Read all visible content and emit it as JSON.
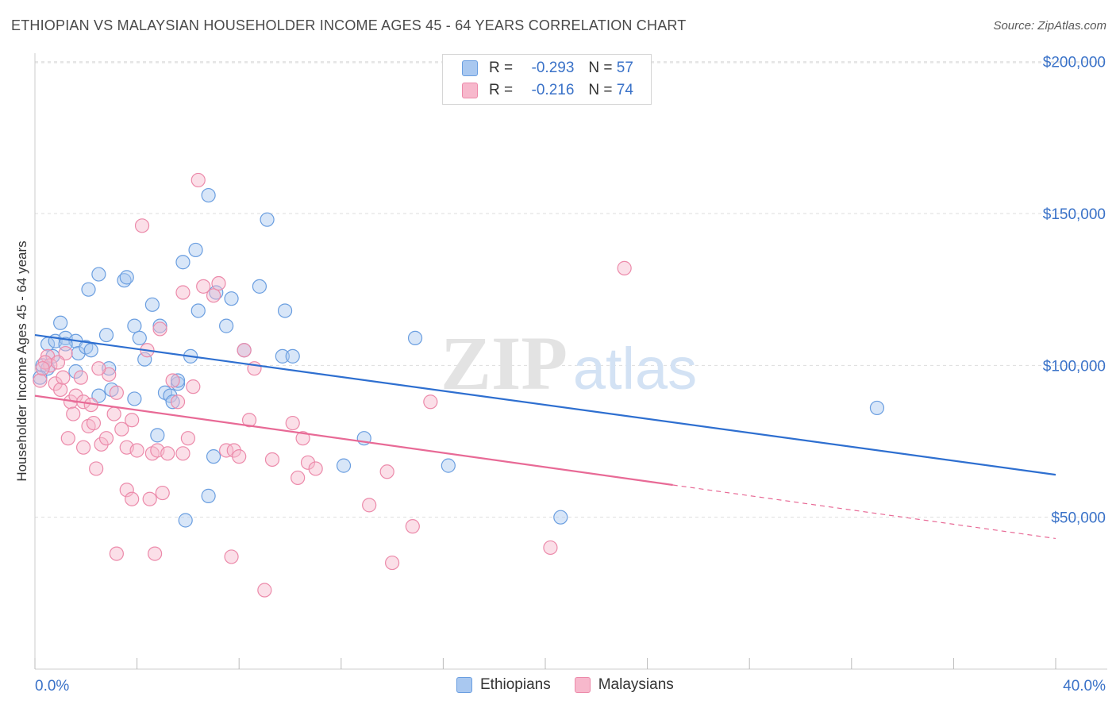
{
  "header": {
    "title": "ETHIOPIAN VS MALAYSIAN HOUSEHOLDER INCOME AGES 45 - 64 YEARS CORRELATION CHART",
    "source": "Source: ZipAtlas.com"
  },
  "legend": {
    "rows": [
      {
        "r_label": "R =",
        "r_value": "-0.293",
        "n_label": "N =",
        "n_value": "57"
      },
      {
        "r_label": "R =",
        "r_value": "-0.216",
        "n_label": "N =",
        "n_value": "74"
      }
    ]
  },
  "watermark": {
    "zip": "ZIP",
    "atlas": "atlas"
  },
  "colors": {
    "ethiopians_fill": "#a9c8f0",
    "ethiopians_stroke": "#6a9ee0",
    "ethiopians_line": "#2e6fd0",
    "malaysians_fill": "#f7b8cc",
    "malaysians_stroke": "#ec8aaa",
    "malaysians_line": "#e86a96",
    "tick_label": "#3a72c8",
    "grid": "#dddddd"
  },
  "chart_data": {
    "type": "scatter",
    "title": "ETHIOPIAN VS MALAYSIAN HOUSEHOLDER INCOME AGES 45 - 64 YEARS CORRELATION CHART",
    "xlabel": "",
    "ylabel": "Householder Income Ages 45 - 64 years",
    "xlim": [
      0,
      40
    ],
    "ylim": [
      0,
      210000
    ],
    "x_tick_labels": [
      {
        "value": 0,
        "label": "0.0%"
      },
      {
        "value": 40,
        "label": "40.0%"
      }
    ],
    "y_ticks": [
      {
        "value": 50000,
        "label": "$50,000"
      },
      {
        "value": 100000,
        "label": "$100,000"
      },
      {
        "value": 150000,
        "label": "$150,000"
      },
      {
        "value": 200000,
        "label": "$200,000"
      }
    ],
    "x_minor_ticks": [
      0,
      4,
      8,
      12,
      16,
      20,
      24,
      28,
      32,
      36,
      40
    ],
    "grid": true,
    "legend_position": "top-center",
    "series": [
      {
        "name": "Ethiopians",
        "trend": {
          "x": [
            0,
            40
          ],
          "y": [
            110000,
            64000
          ],
          "dashed_from": null
        },
        "points": [
          [
            0.3,
            100000
          ],
          [
            0.5,
            107000
          ],
          [
            0.8,
            108000
          ],
          [
            1.0,
            114000
          ],
          [
            1.2,
            109000
          ],
          [
            1.6,
            108000
          ],
          [
            1.7,
            104000
          ],
          [
            2.0,
            106000
          ],
          [
            2.1,
            125000
          ],
          [
            2.5,
            130000
          ],
          [
            2.8,
            110000
          ],
          [
            2.9,
            99000
          ],
          [
            3.5,
            128000
          ],
          [
            3.6,
            129000
          ],
          [
            3.0,
            92000
          ],
          [
            3.9,
            113000
          ],
          [
            4.1,
            109000
          ],
          [
            4.6,
            120000
          ],
          [
            4.9,
            113000
          ],
          [
            5.1,
            91000
          ],
          [
            5.3,
            90000
          ],
          [
            5.4,
            88000
          ],
          [
            5.6,
            94000
          ],
          [
            5.8,
            134000
          ],
          [
            6.1,
            103000
          ],
          [
            6.3,
            138000
          ],
          [
            6.4,
            118000
          ],
          [
            6.8,
            156000
          ],
          [
            7.1,
            124000
          ],
          [
            7.5,
            113000
          ],
          [
            7.7,
            122000
          ],
          [
            8.8,
            126000
          ],
          [
            8.2,
            105000
          ],
          [
            9.1,
            148000
          ],
          [
            9.7,
            103000
          ],
          [
            9.8,
            118000
          ],
          [
            10.1,
            103000
          ],
          [
            12.1,
            67000
          ],
          [
            12.9,
            76000
          ],
          [
            14.9,
            109000
          ],
          [
            16.2,
            67000
          ],
          [
            20.6,
            50000
          ],
          [
            33.0,
            86000
          ],
          [
            6.8,
            57000
          ],
          [
            7.0,
            70000
          ],
          [
            5.9,
            49000
          ],
          [
            4.8,
            77000
          ],
          [
            3.9,
            89000
          ],
          [
            2.5,
            90000
          ],
          [
            2.2,
            105000
          ],
          [
            1.6,
            98000
          ],
          [
            1.2,
            107000
          ],
          [
            0.7,
            103000
          ],
          [
            0.5,
            99000
          ],
          [
            4.3,
            102000
          ],
          [
            5.6,
            95000
          ],
          [
            0.2,
            96000
          ]
        ]
      },
      {
        "name": "Malaysians",
        "trend": {
          "x": [
            0,
            40
          ],
          "y": [
            90000,
            43000
          ],
          "dashed_from": 25.0
        },
        "points": [
          [
            0.2,
            95000
          ],
          [
            0.5,
            103000
          ],
          [
            0.6,
            100000
          ],
          [
            0.8,
            94000
          ],
          [
            1.0,
            92000
          ],
          [
            1.2,
            104000
          ],
          [
            1.4,
            88000
          ],
          [
            1.6,
            90000
          ],
          [
            1.8,
            96000
          ],
          [
            1.9,
            88000
          ],
          [
            2.1,
            80000
          ],
          [
            2.3,
            81000
          ],
          [
            2.4,
            66000
          ],
          [
            2.6,
            74000
          ],
          [
            2.9,
            97000
          ],
          [
            3.1,
            84000
          ],
          [
            3.2,
            91000
          ],
          [
            3.4,
            79000
          ],
          [
            3.6,
            73000
          ],
          [
            3.8,
            82000
          ],
          [
            4.0,
            72000
          ],
          [
            4.2,
            146000
          ],
          [
            4.4,
            105000
          ],
          [
            4.6,
            71000
          ],
          [
            4.8,
            72000
          ],
          [
            5.0,
            58000
          ],
          [
            5.2,
            71000
          ],
          [
            5.4,
            95000
          ],
          [
            5.6,
            88000
          ],
          [
            5.8,
            71000
          ],
          [
            6.0,
            76000
          ],
          [
            6.2,
            93000
          ],
          [
            6.4,
            161000
          ],
          [
            6.6,
            126000
          ],
          [
            7.0,
            123000
          ],
          [
            7.2,
            127000
          ],
          [
            7.5,
            72000
          ],
          [
            7.8,
            72000
          ],
          [
            8.0,
            70000
          ],
          [
            8.2,
            105000
          ],
          [
            8.4,
            82000
          ],
          [
            8.6,
            99000
          ],
          [
            9.0,
            26000
          ],
          [
            9.3,
            69000
          ],
          [
            10.3,
            63000
          ],
          [
            10.7,
            68000
          ],
          [
            11.0,
            66000
          ],
          [
            10.5,
            76000
          ],
          [
            10.1,
            81000
          ],
          [
            13.1,
            54000
          ],
          [
            13.8,
            65000
          ],
          [
            14.0,
            35000
          ],
          [
            14.8,
            47000
          ],
          [
            15.5,
            88000
          ],
          [
            20.2,
            40000
          ],
          [
            23.1,
            132000
          ],
          [
            5.8,
            124000
          ],
          [
            4.9,
            112000
          ],
          [
            3.6,
            59000
          ],
          [
            3.8,
            56000
          ],
          [
            4.5,
            56000
          ],
          [
            2.5,
            99000
          ],
          [
            1.3,
            76000
          ],
          [
            1.9,
            73000
          ],
          [
            3.2,
            38000
          ],
          [
            4.7,
            38000
          ],
          [
            7.7,
            37000
          ],
          [
            0.9,
            101000
          ],
          [
            1.5,
            84000
          ],
          [
            2.2,
            87000
          ],
          [
            2.8,
            76000
          ],
          [
            0.4,
            101000
          ],
          [
            0.3,
            99000
          ],
          [
            1.1,
            96000
          ]
        ]
      }
    ]
  },
  "bottom_legend": {
    "items": [
      {
        "label": "Ethiopians"
      },
      {
        "label": "Malaysians"
      }
    ]
  }
}
